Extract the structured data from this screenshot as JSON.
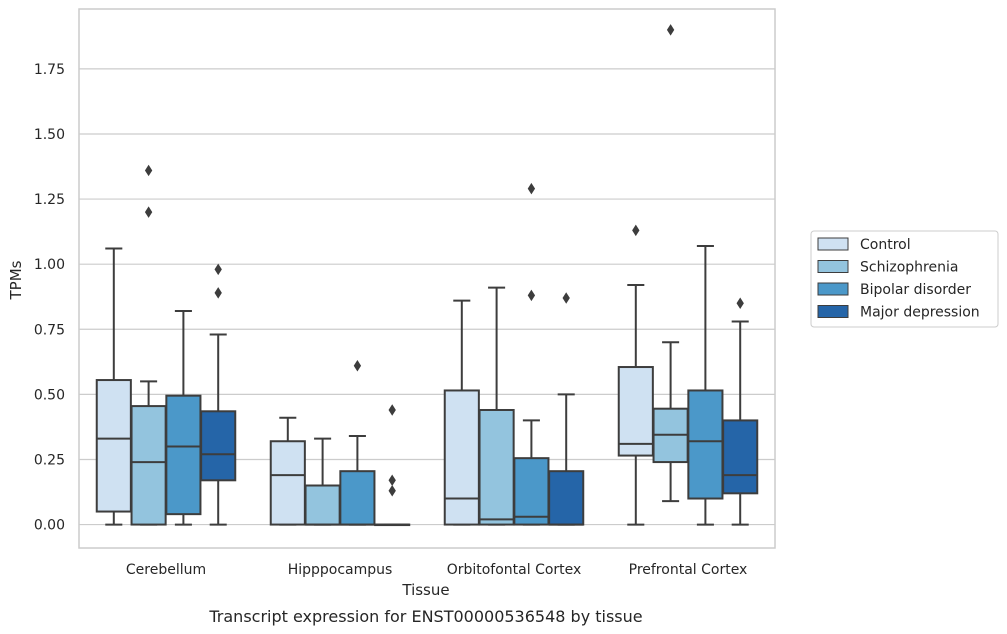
{
  "chart_data": {
    "type": "box",
    "caption": "Transcript expression for ENST00000536548 by tissue",
    "xlabel": "Tissue",
    "ylabel": "TPMs",
    "ylim": [
      -0.09,
      1.98
    ],
    "yticks": [
      "0.00",
      "0.25",
      "0.50",
      "0.75",
      "1.00",
      "1.25",
      "1.50",
      "1.75"
    ],
    "grid": true,
    "legend_position": "right",
    "categories": [
      "Cerebellum",
      "Hipppocampus",
      "Orbitofontal Cortex",
      "Prefrontal Cortex"
    ],
    "series": [
      {
        "name": "Control",
        "color": "#cfe1f2",
        "boxes": [
          {
            "min": 0.0,
            "q1": 0.05,
            "median": 0.33,
            "q3": 0.555,
            "max": 1.06,
            "outliers": []
          },
          {
            "min": 0.0,
            "q1": 0.0,
            "median": 0.19,
            "q3": 0.32,
            "max": 0.41,
            "outliers": []
          },
          {
            "min": 0.0,
            "q1": 0.0,
            "median": 0.1,
            "q3": 0.515,
            "max": 0.86,
            "outliers": []
          },
          {
            "min": 0.0,
            "q1": 0.265,
            "median": 0.31,
            "q3": 0.605,
            "max": 0.92,
            "outliers": [
              1.13
            ]
          }
        ]
      },
      {
        "name": "Schizophrenia",
        "color": "#93c4de",
        "boxes": [
          {
            "min": 0.0,
            "q1": 0.0,
            "median": 0.24,
            "q3": 0.455,
            "max": 0.55,
            "outliers": [
              1.2,
              1.36
            ]
          },
          {
            "min": 0.0,
            "q1": 0.0,
            "median": 0.0,
            "q3": 0.15,
            "max": 0.33,
            "outliers": []
          },
          {
            "min": 0.0,
            "q1": 0.0,
            "median": 0.02,
            "q3": 0.44,
            "max": 0.91,
            "outliers": []
          },
          {
            "min": 0.09,
            "q1": 0.24,
            "median": 0.345,
            "q3": 0.445,
            "max": 0.7,
            "outliers": [
              1.9
            ]
          }
        ]
      },
      {
        "name": "Bipolar disorder",
        "color": "#4b98c9",
        "boxes": [
          {
            "min": 0.0,
            "q1": 0.04,
            "median": 0.3,
            "q3": 0.495,
            "max": 0.82,
            "outliers": []
          },
          {
            "min": 0.0,
            "q1": 0.0,
            "median": 0.0,
            "q3": 0.205,
            "max": 0.34,
            "outliers": [
              0.61
            ]
          },
          {
            "min": 0.0,
            "q1": 0.0,
            "median": 0.03,
            "q3": 0.255,
            "max": 0.4,
            "outliers": [
              0.88,
              1.29
            ]
          },
          {
            "min": 0.0,
            "q1": 0.1,
            "median": 0.32,
            "q3": 0.515,
            "max": 1.07,
            "outliers": []
          }
        ]
      },
      {
        "name": "Major depression",
        "color": "#2565a8",
        "boxes": [
          {
            "min": 0.0,
            "q1": 0.17,
            "median": 0.27,
            "q3": 0.435,
            "max": 0.73,
            "outliers": [
              0.89,
              0.98
            ]
          },
          {
            "min": 0.0,
            "q1": 0.0,
            "median": 0.0,
            "q3": 0.0,
            "max": 0.0,
            "outliers": [
              0.13,
              0.17,
              0.44
            ]
          },
          {
            "min": 0.0,
            "q1": 0.0,
            "median": 0.0,
            "q3": 0.205,
            "max": 0.5,
            "outliers": [
              0.87
            ]
          },
          {
            "min": 0.0,
            "q1": 0.12,
            "median": 0.19,
            "q3": 0.4,
            "max": 0.78,
            "outliers": [
              0.85
            ]
          }
        ]
      }
    ]
  }
}
